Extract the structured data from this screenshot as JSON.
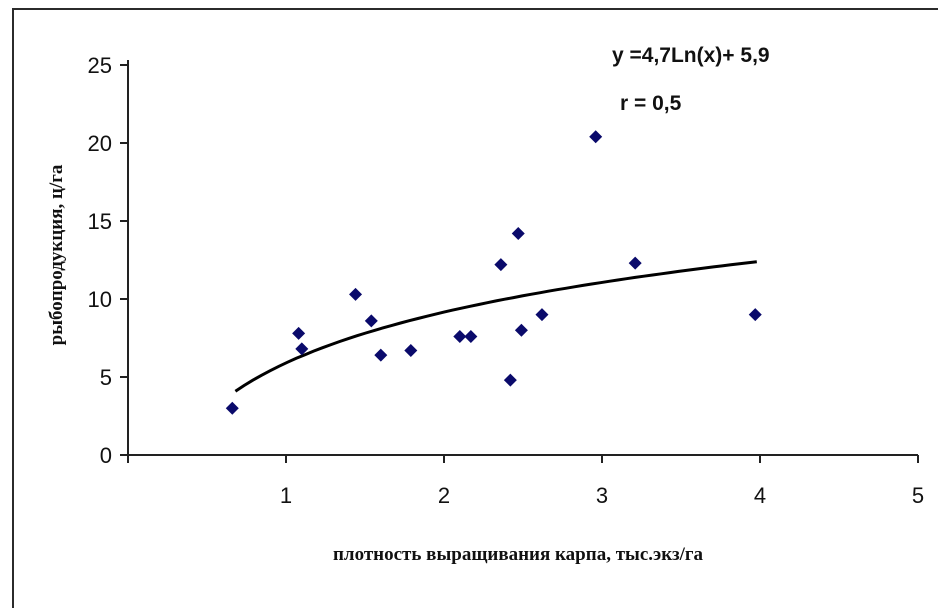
{
  "chart_data": {
    "type": "scatter",
    "title": "",
    "xlabel": "плотность выращивания карпа, тыс.экз/га",
    "ylabel": "рыбопродукция, ц/га",
    "xlim": [
      0,
      5
    ],
    "ylim": [
      0,
      25
    ],
    "xticks": [
      "1",
      "2",
      "3",
      "4",
      "5"
    ],
    "yticks": [
      "0",
      "5",
      "10",
      "15",
      "20",
      "25"
    ],
    "grid": false,
    "legend": "none",
    "points": [
      {
        "x": 0.66,
        "y": 3.0
      },
      {
        "x": 1.08,
        "y": 7.8
      },
      {
        "x": 1.1,
        "y": 6.8
      },
      {
        "x": 1.44,
        "y": 10.3
      },
      {
        "x": 1.54,
        "y": 8.6
      },
      {
        "x": 1.6,
        "y": 6.4
      },
      {
        "x": 1.79,
        "y": 6.7
      },
      {
        "x": 2.1,
        "y": 7.6
      },
      {
        "x": 2.17,
        "y": 7.6
      },
      {
        "x": 2.36,
        "y": 12.2
      },
      {
        "x": 2.42,
        "y": 4.8
      },
      {
        "x": 2.47,
        "y": 14.2
      },
      {
        "x": 2.49,
        "y": 8.0
      },
      {
        "x": 2.62,
        "y": 9.0
      },
      {
        "x": 2.96,
        "y": 20.4
      },
      {
        "x": 3.21,
        "y": 12.3
      },
      {
        "x": 3.97,
        "y": 9.0
      }
    ],
    "trendline": {
      "type": "logarithmic",
      "a": 4.7,
      "b": 5.9,
      "x_range": [
        0.68,
        3.98
      ]
    },
    "annotations": {
      "equation": "y =4,7Ln(x)+ 5,9",
      "r": "r = 0,5"
    },
    "marker_color": "#0a0a6b",
    "line_color": "#000000"
  }
}
